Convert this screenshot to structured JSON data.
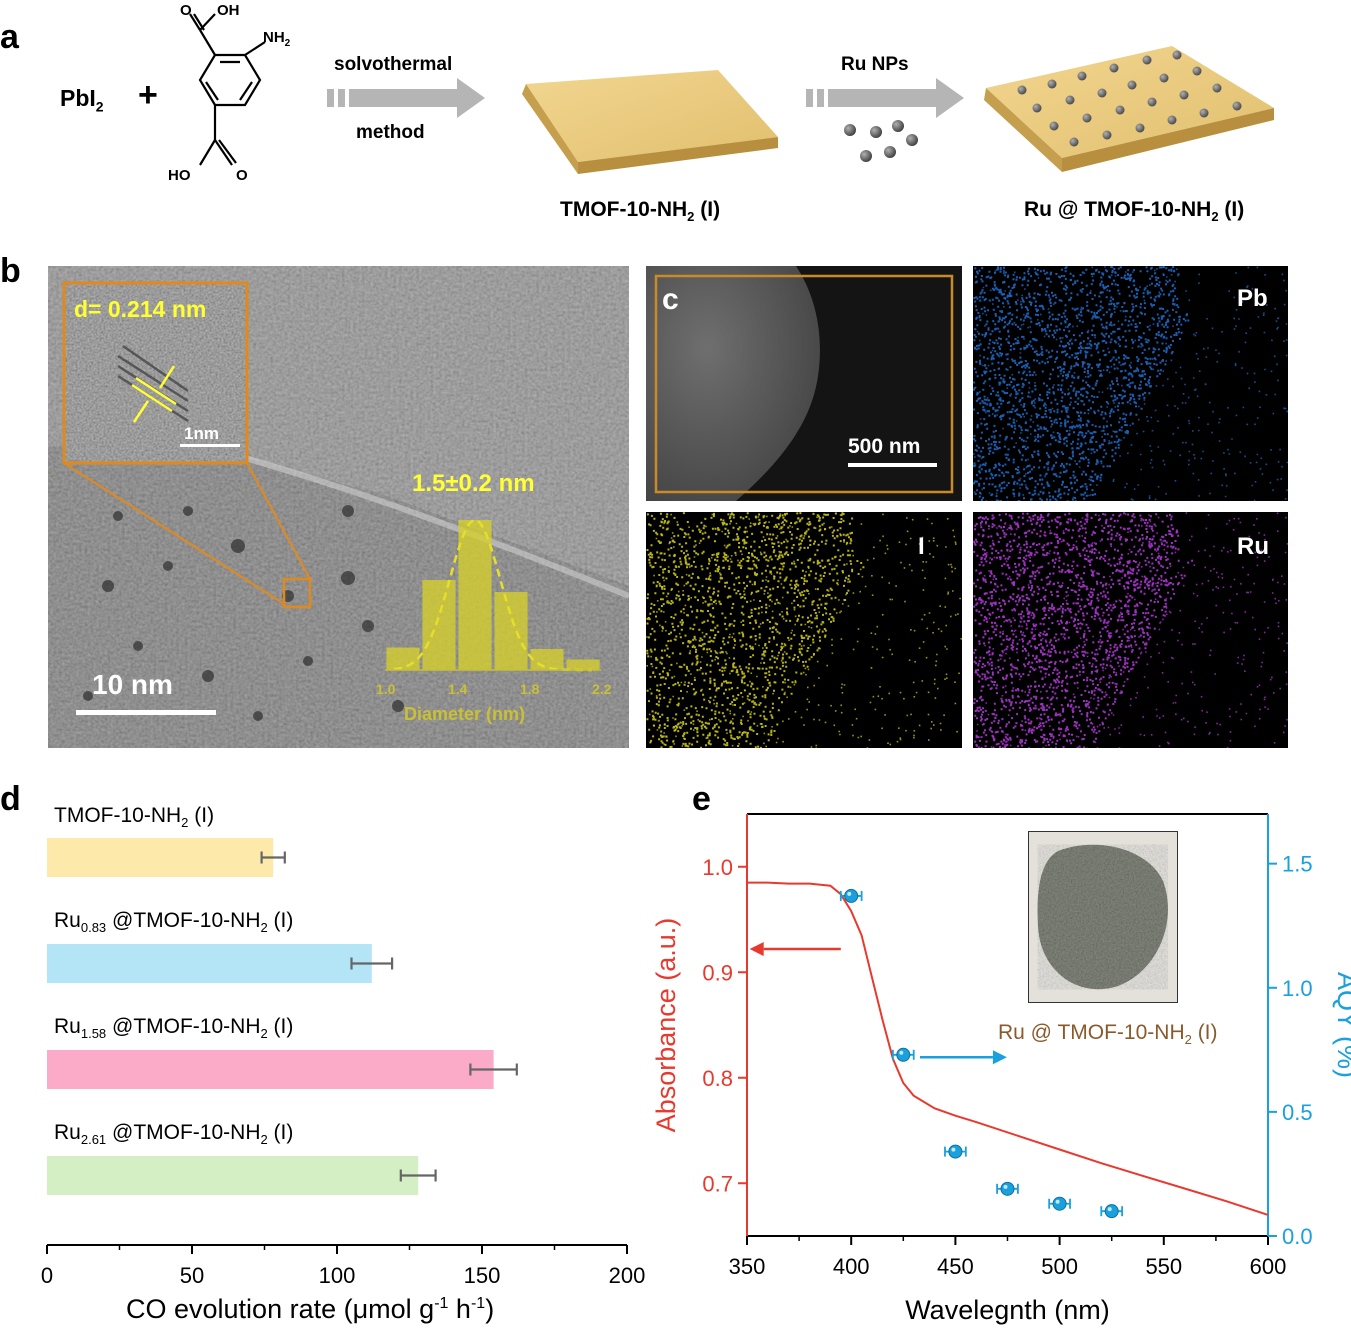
{
  "panel_a": {
    "label": "a",
    "reactant1_base": "PbI",
    "reactant1_sub": "2",
    "plus": "+",
    "ligand": {
      "cooh_top": "O",
      "oh_top": "OH",
      "nh2": "NH",
      "nh2_sub": "2",
      "ho_bottom": "HO",
      "o_bottom": "O"
    },
    "arrow1_top": "solvothermal",
    "arrow1_bottom": "method",
    "arrow2_top": "Ru NPs",
    "product1": {
      "base": "TMOF-10-NH",
      "sub": "2",
      "tail": " (I)"
    },
    "product2": {
      "base": "Ru @ TMOF-10-NH",
      "sub": "2",
      "tail": " (I)"
    }
  },
  "panel_b": {
    "label": "b",
    "inset_d": "d= 0.214 nm",
    "inset_scale": "1nm",
    "scale": "10 nm",
    "size_label": "1.5±0.2 nm",
    "histogram": {
      "x_ticks": [
        "1.0",
        "1.4",
        "1.8",
        "2.2"
      ],
      "xlabel": "Diameter (nm)",
      "bins": [
        1.1,
        1.3,
        1.5,
        1.7,
        1.9,
        2.1
      ],
      "values": [
        0.15,
        0.6,
        1.0,
        0.52,
        0.14,
        0.07
      ]
    }
  },
  "panel_c": {
    "label": "c",
    "scale": "500 nm",
    "maps": [
      {
        "element": "Pb",
        "color": "#1e6fd0"
      },
      {
        "element": "I",
        "color": "#d6d21a"
      },
      {
        "element": "Ru",
        "color": "#b63adf"
      }
    ]
  },
  "panel_d": {
    "label": "d",
    "chart_data": {
      "type": "bar",
      "orientation": "horizontal",
      "categories": [
        {
          "pre": "TMOF-10-NH",
          "sub": "2",
          "post": " (I)"
        },
        {
          "pre": "Ru",
          "sub": "0.83",
          "post": " @TMOF-10-NH",
          "sub2": "2",
          "post2": " (I)"
        },
        {
          "pre": "Ru",
          "sub": "1.58",
          "post": " @TMOF-10-NH",
          "sub2": "2",
          "post2": " (I)"
        },
        {
          "pre": "Ru",
          "sub": "2.61",
          "post": " @TMOF-10-NH",
          "sub2": "2",
          "post2": " (I)"
        }
      ],
      "values": [
        78,
        112,
        154,
        128
      ],
      "errors": [
        4,
        7,
        8,
        6
      ],
      "colors": [
        "#fde9a9",
        "#b3e5f7",
        "#fbaac7",
        "#d4efc3"
      ],
      "xlim": [
        0,
        200
      ],
      "x_ticks": [
        0,
        50,
        100,
        150,
        200
      ],
      "xlabel": "CO evolution rate (μmol g",
      "xlabel_sup1": "-1",
      "xlabel_mid": " h",
      "xlabel_sup2": "-1",
      "xlabel_end": ")"
    }
  },
  "panel_e": {
    "label": "e",
    "chart_data": {
      "type": "line",
      "xlabel": "Wavelegnth (nm)",
      "ylabel_left": "Absorbance (a.u.)",
      "ylabel_right": "AQY (%)",
      "xlim": [
        350,
        600
      ],
      "ylim_left": [
        0.65,
        1.05
      ],
      "ylim_right": [
        0,
        1.7
      ],
      "x_ticks": [
        350,
        400,
        450,
        500,
        550,
        600
      ],
      "y_ticks_left": [
        "0.7",
        "0.8",
        "0.9",
        "1.0"
      ],
      "y_ticks_right": [
        "0.0",
        "0.5",
        "1.0",
        "1.5"
      ],
      "absorbance": {
        "x": [
          350,
          360,
          370,
          380,
          390,
          395,
          400,
          405,
          410,
          415,
          420,
          425,
          430,
          440,
          450,
          460,
          480,
          500,
          520,
          540,
          560,
          580,
          600
        ],
        "y": [
          0.985,
          0.985,
          0.984,
          0.984,
          0.982,
          0.974,
          0.958,
          0.935,
          0.895,
          0.855,
          0.818,
          0.795,
          0.783,
          0.771,
          0.764,
          0.758,
          0.745,
          0.732,
          0.719,
          0.707,
          0.695,
          0.683,
          0.67
        ]
      },
      "aqy": {
        "x": [
          400,
          425,
          450,
          475,
          500,
          525
        ],
        "y": [
          1.37,
          0.73,
          0.34,
          0.19,
          0.13,
          0.1
        ],
        "xerr": 5
      },
      "inset_label": {
        "pre": "Ru @ TMOF-10-NH",
        "sub": "2",
        "post": " (I)"
      },
      "colors": {
        "left": "#e8392e",
        "right": "#1aa0dd",
        "inset_label": "#8b5a2b"
      }
    }
  }
}
